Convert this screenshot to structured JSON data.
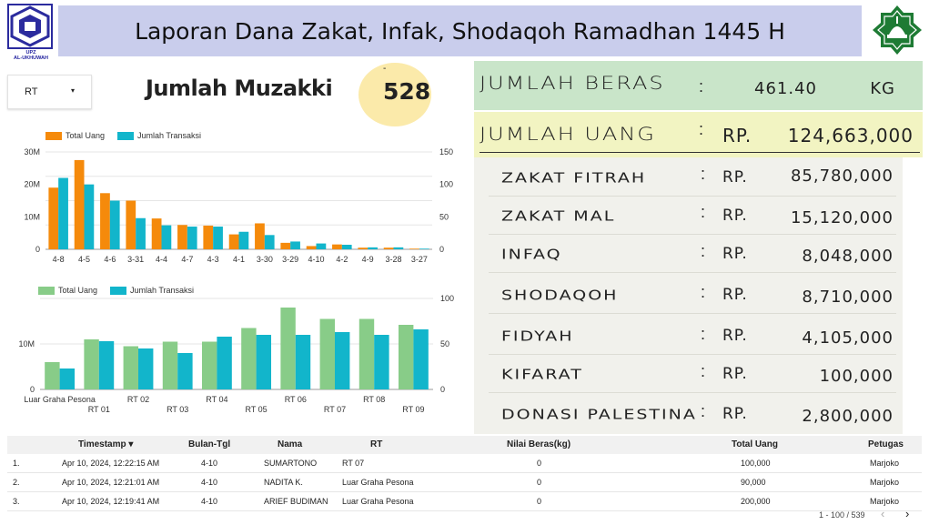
{
  "header": {
    "title": "Laporan Dana Zakat, Infak, Shodaqoh Ramadhan 1445 H",
    "logo_left_caption_1": "UPZ",
    "logo_left_caption_2": "AL-UKHUWAH",
    "logo_right_caption": "AL-UKHUWAH"
  },
  "filter": {
    "label": "RT",
    "icon": "chevron-down-icon"
  },
  "muzakki": {
    "label": "Jumlah Muzakki",
    "dash": "-",
    "value": "528"
  },
  "summary": {
    "beras": {
      "label": "Jumlah Beras",
      "colon": ":",
      "value": "461.40",
      "unit": "KG",
      "bg": "#c9e5c9"
    },
    "uang": {
      "label": "Jumlah Uang",
      "colon": ":",
      "currency": "RP.",
      "value": "124,663,000",
      "bg": "#f2f4c2"
    },
    "panel_bg": "#f1f1ec",
    "items": [
      {
        "label": "Zakat Fitrah",
        "colon": ":",
        "currency": "RP.",
        "value": "85,780,000"
      },
      {
        "label": "Zakat Mal",
        "colon": ":",
        "currency": "RP.",
        "value": "15,120,000"
      },
      {
        "label": "Infaq",
        "colon": ":",
        "currency": "RP.",
        "value": "8,048,000"
      },
      {
        "label": "Shodaqoh",
        "colon": ":",
        "currency": "RP.",
        "value": "8,710,000"
      },
      {
        "label": "Fidyah",
        "colon": ":",
        "currency": "RP.",
        "value": "4,105,000"
      },
      {
        "label": "Kifarat",
        "colon": ":",
        "currency": "RP.",
        "value": "100,000"
      },
      {
        "label": "Donasi Palestina",
        "colon": ":",
        "currency": "RP.",
        "value": "2,800,000"
      }
    ]
  },
  "chart_data": [
    {
      "type": "bar",
      "categories": [
        "4-8",
        "4-5",
        "4-6",
        "3-31",
        "4-4",
        "4-7",
        "4-3",
        "4-1",
        "3-30",
        "3-29",
        "4-10",
        "4-2",
        "4-9",
        "3-28",
        "3-27"
      ],
      "series": [
        {
          "name": "Total Uang",
          "axis": "left",
          "color": "#f58a0b",
          "values": [
            19000000,
            27500000,
            17300000,
            15000000,
            9500000,
            7500000,
            7300000,
            4600000,
            8000000,
            2000000,
            1000000,
            1500000,
            500000,
            500000,
            200000
          ]
        },
        {
          "name": "Jumlah Transaksi",
          "axis": "right",
          "color": "#12b5cb",
          "values": [
            110,
            100,
            75,
            48,
            37,
            35,
            35,
            27,
            22,
            12,
            9,
            7,
            3,
            3,
            1
          ]
        }
      ],
      "yticks_left": [
        "0",
        "10M",
        "20M",
        "30M"
      ],
      "yticks_right": [
        "0",
        "50",
        "100",
        "150"
      ],
      "ylim_left": [
        0,
        30000000
      ],
      "ylim_right": [
        0,
        150
      ],
      "legend": "top-left",
      "grid": true
    },
    {
      "type": "bar",
      "categories": [
        "Luar Graha Pesona",
        "RT 01",
        "RT 02",
        "RT 03",
        "RT 04",
        "RT 05",
        "RT 06",
        "RT 07",
        "RT 08",
        "RT 09"
      ],
      "series": [
        {
          "name": "Total Uang",
          "axis": "left",
          "color": "#88cc88",
          "values": [
            6000000,
            11000000,
            9500000,
            10500000,
            10500000,
            13500000,
            18000000,
            15500000,
            15500000,
            14200000
          ]
        },
        {
          "name": "Jumlah Transaksi",
          "axis": "right",
          "color": "#12b5cb",
          "values": [
            23,
            53,
            45,
            40,
            58,
            60,
            60,
            63,
            60,
            66
          ]
        }
      ],
      "yticks_left": [
        "0",
        "10M"
      ],
      "yticks_right": [
        "0",
        "50",
        "100"
      ],
      "ylim_left": [
        0,
        20000000
      ],
      "ylim_right": [
        0,
        100
      ],
      "legend": "top-left",
      "grid": true
    }
  ],
  "table": {
    "headers": {
      "timestamp": "Timestamp",
      "bulan_tgl": "Bulan-Tgl",
      "nama": "Nama",
      "rt": "RT",
      "nilai_beras": "Nilai Beras(kg)",
      "total_uang": "Total Uang",
      "petugas": "Petugas"
    },
    "sort_indicator": "▾",
    "rows": [
      {
        "no": "1.",
        "timestamp": "Apr 10, 2024, 12:22:15 AM",
        "bulan_tgl": "4-10",
        "nama": "SUMARTONO",
        "rt": "RT 07",
        "nilai_beras": "0",
        "total_uang": "100,000",
        "petugas": "Marjoko"
      },
      {
        "no": "2.",
        "timestamp": "Apr 10, 2024, 12:21:01 AM",
        "bulan_tgl": "4-10",
        "nama": "NADITA K.",
        "rt": "Luar Graha Pesona",
        "nilai_beras": "0",
        "total_uang": "90,000",
        "petugas": "Marjoko"
      },
      {
        "no": "3.",
        "timestamp": "Apr 10, 2024, 12:19:41 AM",
        "bulan_tgl": "4-10",
        "nama": "ARIEF BUDIMAN",
        "rt": "Luar Graha Pesona",
        "nilai_beras": "0",
        "total_uang": "200,000",
        "petugas": "Marjoko"
      }
    ],
    "pager": "1 - 100 / 539",
    "prev_icon": "chevron-left-icon",
    "next_icon": "chevron-right-icon"
  }
}
